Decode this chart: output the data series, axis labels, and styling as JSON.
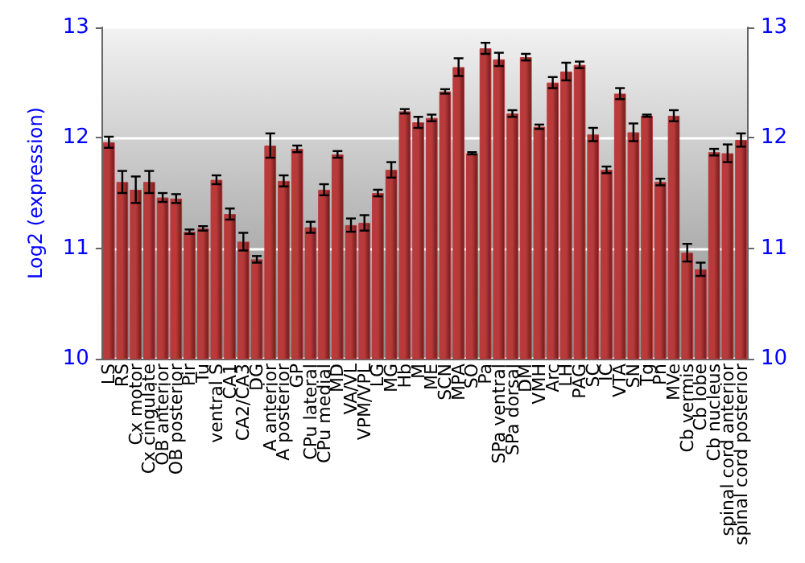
{
  "chart_data": {
    "type": "bar",
    "ylabel": "Log2 (expression)",
    "categories": [
      "LS",
      "RS",
      "Cx motor",
      "Cx cingulate",
      "OB anterior",
      "OB posterior",
      "Pir",
      "Tu",
      "ventral S",
      "CA1",
      "CA2/CA3",
      "DG",
      "A anterior",
      "A posterior",
      "GP",
      "CPu lateral",
      "CPu medial",
      "MD",
      "VA/VL",
      "VPM/VPL",
      "LG",
      "MG",
      "Hb",
      "M",
      "ME",
      "SCN",
      "MPA",
      "SO",
      "Pa",
      "SPa ventral",
      "SPa dorsal",
      "DM",
      "VMH",
      "Arc",
      "LH",
      "PAG",
      "SC",
      "IC",
      "VTA",
      "SN",
      "Tg",
      "Pn",
      "MVe",
      "Cb vermis",
      "Cb lobe",
      "Cb nucleus",
      "spinal cord anterior",
      "spinal cord posterior"
    ],
    "values": [
      11.96,
      11.6,
      11.53,
      11.6,
      11.46,
      11.45,
      11.15,
      11.18,
      11.62,
      11.31,
      11.06,
      10.9,
      11.93,
      11.61,
      11.9,
      11.19,
      11.53,
      11.85,
      11.21,
      11.23,
      11.5,
      11.71,
      12.24,
      12.14,
      12.18,
      12.42,
      12.64,
      11.86,
      12.81,
      12.71,
      12.22,
      12.73,
      12.1,
      12.5,
      12.6,
      12.66,
      12.03,
      11.71,
      12.4,
      12.05,
      12.2,
      11.6,
      12.2,
      10.96,
      10.81,
      11.87,
      11.86,
      11.98
    ],
    "errors": [
      0.05,
      0.1,
      0.12,
      0.1,
      0.04,
      0.04,
      0.02,
      0.02,
      0.04,
      0.05,
      0.08,
      0.03,
      0.11,
      0.05,
      0.03,
      0.05,
      0.05,
      0.03,
      0.06,
      0.07,
      0.03,
      0.07,
      0.02,
      0.05,
      0.03,
      0.02,
      0.08,
      0.01,
      0.05,
      0.06,
      0.03,
      0.03,
      0.02,
      0.05,
      0.08,
      0.03,
      0.06,
      0.03,
      0.05,
      0.08,
      0.01,
      0.03,
      0.05,
      0.08,
      0.06,
      0.03,
      0.08,
      0.06
    ],
    "color": "#b83a3a",
    "ylim": [
      10,
      13
    ],
    "yticks": [
      10,
      11,
      12,
      13
    ],
    "y2lim": [
      10,
      13
    ],
    "y2ticks": [
      10,
      11,
      12,
      13
    ],
    "grid": "y"
  }
}
